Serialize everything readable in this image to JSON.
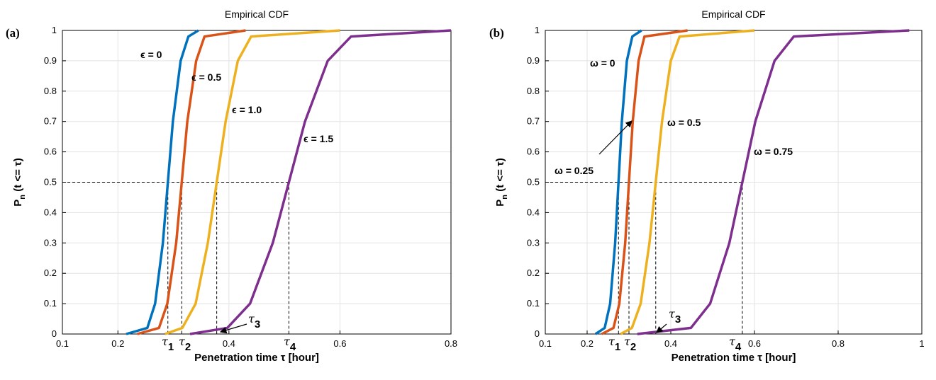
{
  "chart_data": [
    {
      "type": "line",
      "title": "Empirical CDF",
      "panel_label": "(a)",
      "xlabel": "Penetration time τ [hour]",
      "ylabel": {
        "main": "P",
        "subscript": "n",
        "rest": " (t <= τ)"
      },
      "xlim": [
        0.1,
        0.8
      ],
      "xticks": [
        0.1,
        0.2,
        0.4,
        0.6,
        0.8
      ],
      "ylim": [
        0,
        1
      ],
      "yticks": [
        0,
        0.1,
        0.2,
        0.3,
        0.4,
        0.5,
        0.6,
        0.7,
        0.8,
        0.9,
        1
      ],
      "grid": true,
      "series": [
        {
          "name": "ϵ = 0",
          "color": "#0072bd",
          "x": [
            0.215,
            0.253,
            0.267,
            0.281,
            0.29,
            0.299,
            0.313,
            0.327,
            0.345
          ],
          "values": [
            0,
            0.02,
            0.1,
            0.3,
            0.5,
            0.7,
            0.9,
            0.98,
            1
          ]
        },
        {
          "name": "ϵ = 0.5",
          "color": "#d95319",
          "x": [
            0.235,
            0.274,
            0.289,
            0.305,
            0.315,
            0.325,
            0.341,
            0.356,
            0.43
          ],
          "values": [
            0,
            0.02,
            0.1,
            0.3,
            0.5,
            0.7,
            0.9,
            0.98,
            1
          ]
        },
        {
          "name": "ϵ = 1.0",
          "color": "#edb120",
          "x": [
            0.285,
            0.316,
            0.34,
            0.362,
            0.378,
            0.394,
            0.416,
            0.44,
            0.6
          ],
          "values": [
            0,
            0.02,
            0.1,
            0.3,
            0.5,
            0.7,
            0.9,
            0.98,
            1
          ]
        },
        {
          "name": "ϵ = 1.5",
          "color": "#7e2f8e",
          "x": [
            0.33,
            0.397,
            0.438,
            0.479,
            0.508,
            0.537,
            0.578,
            0.62,
            0.8
          ],
          "values": [
            0,
            0.02,
            0.1,
            0.3,
            0.5,
            0.7,
            0.9,
            0.98,
            1
          ]
        }
      ],
      "median_level": 0.5,
      "medians": [
        0.29,
        0.315,
        0.378,
        0.508
      ],
      "tau_labels": [
        {
          "symbol": "τ",
          "subscript": "1"
        },
        {
          "symbol": "τ",
          "subscript": "2"
        },
        {
          "symbol": "τ",
          "subscript": "3"
        },
        {
          "symbol": "τ",
          "subscript": "4"
        }
      ]
    },
    {
      "type": "line",
      "title": "Empirical CDF",
      "panel_label": "(b)",
      "xlabel": "Penetration time τ [hour]",
      "ylabel": {
        "main": "P",
        "subscript": "n",
        "rest": " (t <= τ)"
      },
      "xlim": [
        0.1,
        1
      ],
      "xticks": [
        0.1,
        0.2,
        0.4,
        0.6,
        0.8,
        1
      ],
      "ylim": [
        0,
        1
      ],
      "yticks": [
        0,
        0.1,
        0.2,
        0.3,
        0.4,
        0.5,
        0.6,
        0.7,
        0.8,
        0.9,
        1
      ],
      "grid": true,
      "series": [
        {
          "name": "ω = 0",
          "color": "#0072bd",
          "x": [
            0.22,
            0.242,
            0.255,
            0.267,
            0.275,
            0.283,
            0.295,
            0.308,
            0.33
          ],
          "values": [
            0,
            0.02,
            0.1,
            0.3,
            0.5,
            0.7,
            0.9,
            0.98,
            1
          ]
        },
        {
          "name": "ω = 0.25",
          "color": "#d95319",
          "x": [
            0.235,
            0.263,
            0.277,
            0.291,
            0.3,
            0.309,
            0.323,
            0.337,
            0.44
          ],
          "values": [
            0,
            0.02,
            0.1,
            0.3,
            0.5,
            0.7,
            0.9,
            0.98,
            1
          ]
        },
        {
          "name": "ω = 0.5",
          "color": "#edb120",
          "x": [
            0.28,
            0.307,
            0.328,
            0.349,
            0.364,
            0.379,
            0.4,
            0.421,
            0.6
          ],
          "values": [
            0,
            0.02,
            0.1,
            0.3,
            0.5,
            0.7,
            0.9,
            0.98,
            1
          ]
        },
        {
          "name": "ω = 0.75",
          "color": "#7e2f8e",
          "x": [
            0.32,
            0.448,
            0.494,
            0.54,
            0.571,
            0.602,
            0.648,
            0.694,
            0.97
          ],
          "values": [
            0,
            0.02,
            0.1,
            0.3,
            0.5,
            0.7,
            0.9,
            0.98,
            1
          ]
        }
      ],
      "median_level": 0.5,
      "medians": [
        0.275,
        0.3,
        0.364,
        0.571
      ],
      "tau_labels": [
        {
          "symbol": "τ",
          "subscript": "1"
        },
        {
          "symbol": "τ",
          "subscript": "2"
        },
        {
          "symbol": "τ",
          "subscript": "3"
        },
        {
          "symbol": "τ",
          "subscript": "4"
        }
      ]
    }
  ]
}
